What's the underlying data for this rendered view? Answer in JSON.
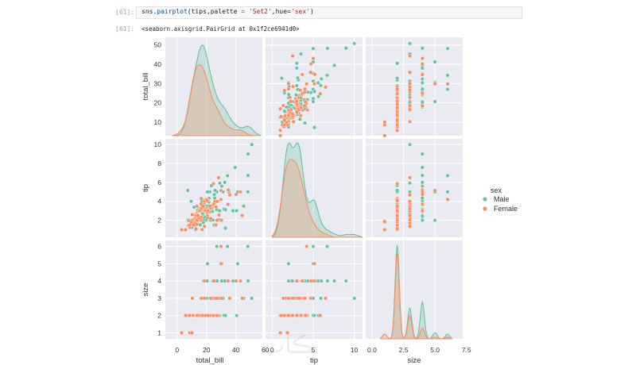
{
  "notebook": {
    "input_prompt": "[61]:",
    "output_prompt": "[61]:",
    "code": {
      "p1": "sns.",
      "fn": "pairplot",
      "p2": "(tips,palette ",
      "eq": "=",
      "p3": " ",
      "s1": "'Set2'",
      "p4": ",hue=",
      "s2": "'sex'",
      "p5": ")"
    },
    "output_text": "<seaborn.axisgrid.PairGrid at 0x1f2ce6941d0>"
  },
  "watermark": "نڪات",
  "chart_data": {
    "type": "pairplot",
    "variables": [
      "total_bill",
      "tip",
      "size"
    ],
    "hue": "sex",
    "legend": {
      "title": "sex",
      "placement": "right",
      "entries": [
        {
          "label": "Male",
          "color": "#66c2a5"
        },
        {
          "label": "Female",
          "color": "#fc8d62"
        }
      ]
    },
    "axes": {
      "total_bill": {
        "label": "total_bill",
        "range": [
          -8,
          58
        ],
        "ticks": [
          0,
          20,
          40,
          60
        ],
        "ylim": [
          3,
          54
        ],
        "yticks": [
          10,
          20,
          30,
          40,
          50
        ]
      },
      "tip": {
        "label": "tip",
        "range": [
          -0.8,
          11
        ],
        "ticks": [
          0,
          5,
          10
        ],
        "ylim": [
          0.2,
          10.6
        ],
        "yticks": [
          2,
          4,
          6,
          8,
          10
        ]
      },
      "size": {
        "label": "size",
        "range": [
          -0.5,
          7.2
        ],
        "ticks": [
          0.0,
          2.5,
          5.0,
          7.5
        ],
        "tick_labels": [
          "0.0",
          "2.5",
          "5.0",
          "7.5"
        ],
        "ylim": [
          0.65,
          6.35
        ],
        "yticks": [
          1,
          2,
          3,
          4,
          5,
          6
        ]
      }
    },
    "kde_peak_heights": {
      "total_bill": 0.92,
      "tip": 0.96,
      "size": 0.95
    },
    "series": [
      {
        "name": "Male",
        "points": [
          [
            8.77,
            2,
            2
          ],
          [
            10.34,
            1.66,
            3
          ],
          [
            21.01,
            3.5,
            3
          ],
          [
            23.68,
            3.31,
            2
          ],
          [
            25.29,
            4.71,
            4
          ],
          [
            8.77,
            2,
            2
          ],
          [
            26.88,
            3.12,
            4
          ],
          [
            15.04,
            1.96,
            2
          ],
          [
            14.78,
            3.23,
            2
          ],
          [
            10.27,
            1.71,
            2
          ],
          [
            35.26,
            5,
            4
          ],
          [
            15.42,
            1.57,
            2
          ],
          [
            18.43,
            3,
            4
          ],
          [
            21.58,
            3.92,
            2
          ],
          [
            10.33,
            1.67,
            3
          ],
          [
            16.29,
            3.71,
            3
          ],
          [
            16.97,
            3.5,
            3
          ],
          [
            20.65,
            3.35,
            3
          ],
          [
            17.92,
            4.08,
            2
          ],
          [
            39.42,
            7.58,
            4
          ],
          [
            19.82,
            3.18,
            2
          ],
          [
            17.81,
            2.34,
            4
          ],
          [
            13.37,
            2,
            2
          ],
          [
            12.69,
            2,
            2
          ],
          [
            21.7,
            4.3,
            2
          ],
          [
            9.55,
            1.45,
            2
          ],
          [
            18.35,
            2.5,
            4
          ],
          [
            15.06,
            3,
            2
          ],
          [
            20.69,
            2.45,
            4
          ],
          [
            17.78,
            3.27,
            2
          ],
          [
            24.06,
            3.6,
            3
          ],
          [
            16.31,
            2,
            3
          ],
          [
            16.93,
            3.07,
            3
          ],
          [
            18.69,
            2.31,
            3
          ],
          [
            31.27,
            5,
            3
          ],
          [
            16.04,
            2.24,
            3
          ],
          [
            17.46,
            2.54,
            2
          ],
          [
            13.94,
            3.06,
            2
          ],
          [
            9.68,
            1.32,
            2
          ],
          [
            30.4,
            5.6,
            4
          ],
          [
            18.29,
            3,
            2
          ],
          [
            22.23,
            5,
            2
          ],
          [
            32.4,
            6,
            4
          ],
          [
            28.55,
            2.05,
            3
          ],
          [
            18.04,
            3,
            2
          ],
          [
            12.54,
            2.5,
            2
          ],
          [
            9.94,
            1.56,
            2
          ],
          [
            25.56,
            4.34,
            4
          ],
          [
            19.49,
            3.51,
            2
          ],
          [
            38.01,
            3,
            4
          ],
          [
            11.24,
            1.76,
            2
          ],
          [
            48.27,
            6.73,
            4
          ],
          [
            20.29,
            3.21,
            2
          ],
          [
            13.81,
            2,
            2
          ],
          [
            11.02,
            1.98,
            2
          ],
          [
            18.29,
            3.76,
            4
          ],
          [
            17.59,
            2.64,
            3
          ],
          [
            20.08,
            3.15,
            3
          ],
          [
            16,
            2,
            2
          ],
          [
            34.81,
            5.2,
            4
          ],
          [
            15.69,
            1.5,
            2
          ],
          [
            18.24,
            3.76,
            2
          ],
          [
            17.26,
            2.74,
            3
          ],
          [
            24.55,
            2,
            4
          ],
          [
            19.77,
            2,
            4
          ],
          [
            29.85,
            5.14,
            5
          ],
          [
            48.17,
            5,
            6
          ],
          [
            34.83,
            5.17,
            4
          ],
          [
            50.81,
            10,
            3
          ],
          [
            15.81,
            3.16,
            2
          ],
          [
            7.25,
            5.15,
            2
          ],
          [
            31.85,
            3.18,
            2
          ],
          [
            16.82,
            4,
            2
          ],
          [
            32.9,
            3.11,
            2
          ],
          [
            17.89,
            2,
            2
          ],
          [
            14.48,
            2,
            2
          ],
          [
            34.3,
            6.7,
            6
          ],
          [
            41.19,
            5,
            5
          ],
          [
            27.05,
            5,
            6
          ],
          [
            48.33,
            9,
            4
          ],
          [
            20.45,
            3,
            4
          ],
          [
            13.28,
            2.72,
            2
          ],
          [
            24.01,
            2,
            4
          ],
          [
            15.69,
            3,
            3
          ],
          [
            11.61,
            3.39,
            2
          ],
          [
            10.77,
            1.47,
            2
          ],
          [
            15.53,
            3,
            2
          ],
          [
            10.07,
            1.25,
            2
          ],
          [
            12.6,
            1,
            2
          ],
          [
            32.83,
            1.17,
            2
          ],
          [
            29.03,
            5.92,
            3
          ],
          [
            22.67,
            2,
            2
          ],
          [
            17.82,
            1.75,
            2
          ],
          [
            28.97,
            3,
            2
          ],
          [
            40.55,
            3,
            2
          ],
          [
            20.69,
            5,
            5
          ],
          [
            45.35,
            3.5,
            3
          ],
          [
            23.33,
            5.65,
            2
          ],
          [
            24.08,
            2.92,
            4
          ],
          [
            30.46,
            2,
            5
          ],
          [
            22.42,
            3.48,
            2
          ],
          [
            15.48,
            2.02,
            2
          ],
          [
            25.89,
            5.16,
            4
          ],
          [
            7.51,
            2,
            2
          ],
          [
            25.21,
            1.5,
            2
          ],
          [
            21.5,
            3.5,
            2
          ],
          [
            27.2,
            4,
            4
          ],
          [
            12.03,
            1.5,
            2
          ],
          [
            13.81,
            2,
            2
          ],
          [
            16.66,
            3.4,
            2
          ],
          [
            24.27,
            2.03,
            2
          ],
          [
            9.6,
            4,
            2
          ]
        ]
      },
      {
        "name": "Female",
        "points": [
          [
            16.99,
            1.01,
            2
          ],
          [
            24.59,
            3.61,
            4
          ],
          [
            26.41,
            1.5,
            2
          ],
          [
            14.83,
            3.02,
            2
          ],
          [
            10.33,
            1.67,
            3
          ],
          [
            16.29,
            3.71,
            3
          ],
          [
            19.65,
            3,
            2
          ],
          [
            10.29,
            2.6,
            2
          ],
          [
            34.81,
            5.2,
            4
          ],
          [
            20.76,
            2.24,
            2
          ],
          [
            18.78,
            3,
            2
          ],
          [
            5.75,
            1,
            2
          ],
          [
            15.77,
            2.23,
            2
          ],
          [
            12.16,
            2.2,
            2
          ],
          [
            13.42,
            3.48,
            2
          ],
          [
            8.58,
            1.92,
            1
          ],
          [
            15.98,
            3,
            3
          ],
          [
            17.51,
            3,
            2
          ],
          [
            14.07,
            2.5,
            2
          ],
          [
            12.74,
            2.01,
            2
          ],
          [
            22.12,
            2.88,
            2
          ],
          [
            43.11,
            5,
            4
          ],
          [
            18.26,
            3.25,
            2
          ],
          [
            8.51,
            1.25,
            2
          ],
          [
            22.82,
            2.18,
            3
          ],
          [
            13.39,
            2.61,
            2
          ],
          [
            16.21,
            2,
            3
          ],
          [
            10.34,
            2,
            2
          ],
          [
            29.85,
            5.14,
            5
          ],
          [
            25,
            3.75,
            4
          ],
          [
            3.07,
            1,
            1
          ],
          [
            11.87,
            1.63,
            2
          ],
          [
            20.27,
            2.83,
            2
          ],
          [
            20.92,
            4.08,
            2
          ],
          [
            13.13,
            2,
            2
          ],
          [
            28.44,
            2.56,
            2
          ],
          [
            18.15,
            3.5,
            3
          ],
          [
            25.71,
            4,
            3
          ],
          [
            18.71,
            4,
            3
          ],
          [
            27.28,
            4,
            2
          ],
          [
            19.44,
            3,
            2
          ],
          [
            16.32,
            4.3,
            2
          ],
          [
            10.07,
            1.83,
            1
          ],
          [
            12.46,
            1.5,
            2
          ],
          [
            7.74,
            1.44,
            2
          ],
          [
            19.81,
            4.19,
            2
          ],
          [
            28.17,
            6.5,
            3
          ],
          [
            16.43,
            2.3,
            2
          ],
          [
            12.43,
            1.8,
            2
          ],
          [
            26.59,
            3.41,
            3
          ],
          [
            35.83,
            4.67,
            3
          ],
          [
            14.15,
            2,
            2
          ],
          [
            16.47,
            3.23,
            3
          ],
          [
            13.42,
            1.58,
            2
          ],
          [
            9.78,
            1.73,
            2
          ],
          [
            14.73,
            2.2,
            2
          ],
          [
            10.65,
            1.5,
            2
          ],
          [
            22.75,
            3.25,
            2
          ],
          [
            18.64,
            1.36,
            3
          ],
          [
            27.18,
            2,
            2
          ],
          [
            34.65,
            3.68,
            4
          ],
          [
            13,
            2,
            2
          ],
          [
            12.48,
            2.52,
            2
          ],
          [
            15.38,
            3,
            2
          ],
          [
            18.43,
            3,
            4
          ],
          [
            11.17,
            1.5,
            2
          ],
          [
            20.49,
            4.06,
            2
          ],
          [
            30.06,
            2,
            3
          ],
          [
            22.49,
            3.5,
            2
          ],
          [
            18.78,
            3,
            2
          ],
          [
            44.3,
            2.5,
            3
          ],
          [
            24.71,
            5.85,
            2
          ],
          [
            40.17,
            4.73,
            4
          ],
          [
            12.9,
            1.1,
            2
          ],
          [
            13.27,
            2.5,
            2
          ],
          [
            8.52,
            1.48,
            2
          ],
          [
            14.26,
            2.5,
            2
          ],
          [
            17.47,
            3.5,
            2
          ],
          [
            19.29,
            3,
            2
          ],
          [
            21.16,
            3,
            2
          ],
          [
            29.8,
            4.2,
            6
          ],
          [
            13.51,
            2,
            2
          ],
          [
            21.01,
            3,
            2
          ]
        ]
      }
    ]
  }
}
